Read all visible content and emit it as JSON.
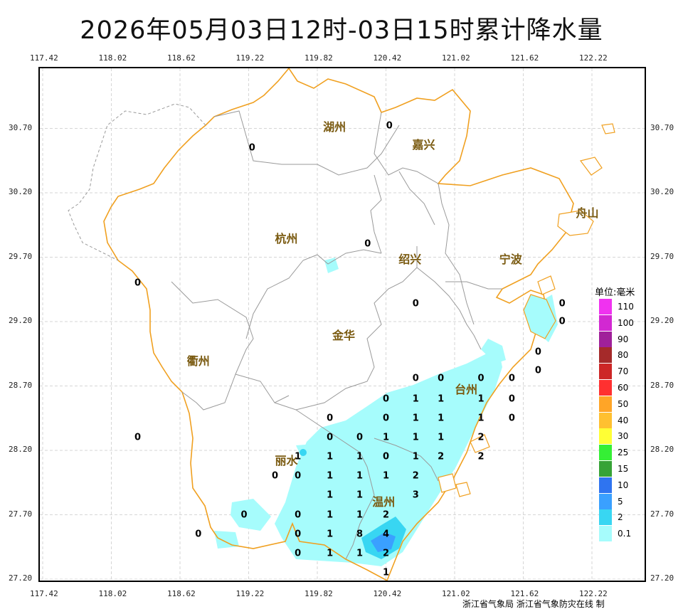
{
  "title": "2026年05月03日12时-03日15时累计降水量",
  "axes": {
    "lon": [
      "117.42",
      "118.02",
      "118.62",
      "119.22",
      "119.82",
      "120.42",
      "121.02",
      "121.62",
      "122.22"
    ],
    "lat": [
      "30.70",
      "30.20",
      "29.70",
      "29.20",
      "28.70",
      "28.20",
      "27.70",
      "27.20"
    ]
  },
  "cities": [
    {
      "name": "湖州",
      "lon": 119.97,
      "lat": 30.72
    },
    {
      "name": "嘉兴",
      "lon": 120.75,
      "lat": 30.58
    },
    {
      "name": "杭州",
      "lon": 119.55,
      "lat": 29.85
    },
    {
      "name": "绍兴",
      "lon": 120.63,
      "lat": 29.69
    },
    {
      "name": "宁波",
      "lon": 121.51,
      "lat": 29.69
    },
    {
      "name": "舟山",
      "lon": 122.18,
      "lat": 30.05
    },
    {
      "name": "金华",
      "lon": 120.05,
      "lat": 29.1
    },
    {
      "name": "衢州",
      "lon": 118.78,
      "lat": 28.9
    },
    {
      "name": "台州",
      "lon": 121.12,
      "lat": 28.68
    },
    {
      "name": "丽水",
      "lon": 119.55,
      "lat": 28.13
    },
    {
      "name": "温州",
      "lon": 120.4,
      "lat": 27.81
    }
  ],
  "station_values": [
    {
      "v": "0",
      "lon": 120.45,
      "lat": 30.72
    },
    {
      "v": "0",
      "lon": 119.25,
      "lat": 30.55
    },
    {
      "v": "0",
      "lon": 120.26,
      "lat": 29.8
    },
    {
      "v": "0",
      "lon": 118.25,
      "lat": 29.5
    },
    {
      "v": "0",
      "lon": 120.68,
      "lat": 29.34
    },
    {
      "v": "0",
      "lon": 121.96,
      "lat": 29.34
    },
    {
      "v": "0",
      "lon": 121.96,
      "lat": 29.2
    },
    {
      "v": "0",
      "lon": 121.75,
      "lat": 28.96
    },
    {
      "v": "0",
      "lon": 121.75,
      "lat": 28.82
    },
    {
      "v": "0",
      "lon": 120.68,
      "lat": 28.76
    },
    {
      "v": "0",
      "lon": 120.9,
      "lat": 28.76
    },
    {
      "v": "0",
      "lon": 121.25,
      "lat": 28.76
    },
    {
      "v": "0",
      "lon": 121.52,
      "lat": 28.76
    },
    {
      "v": "0",
      "lon": 120.42,
      "lat": 28.6
    },
    {
      "v": "1",
      "lon": 120.68,
      "lat": 28.6
    },
    {
      "v": "1",
      "lon": 120.9,
      "lat": 28.6
    },
    {
      "v": "1",
      "lon": 121.25,
      "lat": 28.6
    },
    {
      "v": "0",
      "lon": 121.52,
      "lat": 28.6
    },
    {
      "v": "0",
      "lon": 119.93,
      "lat": 28.45
    },
    {
      "v": "0",
      "lon": 120.42,
      "lat": 28.45
    },
    {
      "v": "1",
      "lon": 120.68,
      "lat": 28.45
    },
    {
      "v": "1",
      "lon": 120.9,
      "lat": 28.45
    },
    {
      "v": "1",
      "lon": 121.25,
      "lat": 28.45
    },
    {
      "v": "0",
      "lon": 121.52,
      "lat": 28.45
    },
    {
      "v": "0",
      "lon": 118.25,
      "lat": 28.3
    },
    {
      "v": "0",
      "lon": 119.93,
      "lat": 28.3
    },
    {
      "v": "0",
      "lon": 120.19,
      "lat": 28.3
    },
    {
      "v": "1",
      "lon": 120.42,
      "lat": 28.3
    },
    {
      "v": "1",
      "lon": 120.68,
      "lat": 28.3
    },
    {
      "v": "1",
      "lon": 120.9,
      "lat": 28.3
    },
    {
      "v": "2",
      "lon": 121.25,
      "lat": 28.3
    },
    {
      "v": "1",
      "lon": 119.65,
      "lat": 28.15
    },
    {
      "v": "1",
      "lon": 119.93,
      "lat": 28.15
    },
    {
      "v": "1",
      "lon": 120.19,
      "lat": 28.15
    },
    {
      "v": "0",
      "lon": 120.42,
      "lat": 28.15
    },
    {
      "v": "1",
      "lon": 120.68,
      "lat": 28.15
    },
    {
      "v": "2",
      "lon": 120.9,
      "lat": 28.15
    },
    {
      "v": "2",
      "lon": 121.25,
      "lat": 28.15
    },
    {
      "v": "0",
      "lon": 119.45,
      "lat": 28.0
    },
    {
      "v": "0",
      "lon": 119.65,
      "lat": 28.0
    },
    {
      "v": "1",
      "lon": 119.93,
      "lat": 28.0
    },
    {
      "v": "1",
      "lon": 120.19,
      "lat": 28.0
    },
    {
      "v": "1",
      "lon": 120.42,
      "lat": 28.0
    },
    {
      "v": "2",
      "lon": 120.68,
      "lat": 28.0
    },
    {
      "v": "1",
      "lon": 119.93,
      "lat": 27.85
    },
    {
      "v": "1",
      "lon": 120.19,
      "lat": 27.85
    },
    {
      "v": "3",
      "lon": 120.68,
      "lat": 27.85
    },
    {
      "v": "0",
      "lon": 119.18,
      "lat": 27.7
    },
    {
      "v": "0",
      "lon": 119.65,
      "lat": 27.7
    },
    {
      "v": "1",
      "lon": 119.93,
      "lat": 27.7
    },
    {
      "v": "1",
      "lon": 120.19,
      "lat": 27.7
    },
    {
      "v": "2",
      "lon": 120.42,
      "lat": 27.7
    },
    {
      "v": "0",
      "lon": 118.78,
      "lat": 27.55
    },
    {
      "v": "0",
      "lon": 119.65,
      "lat": 27.55
    },
    {
      "v": "1",
      "lon": 119.93,
      "lat": 27.55
    },
    {
      "v": "8",
      "lon": 120.19,
      "lat": 27.55
    },
    {
      "v": "4",
      "lon": 120.42,
      "lat": 27.55
    },
    {
      "v": "0",
      "lon": 119.65,
      "lat": 27.4
    },
    {
      "v": "1",
      "lon": 119.93,
      "lat": 27.4
    },
    {
      "v": "1",
      "lon": 120.19,
      "lat": 27.4
    },
    {
      "v": "2",
      "lon": 120.42,
      "lat": 27.4
    },
    {
      "v": "1",
      "lon": 120.42,
      "lat": 27.25
    }
  ],
  "legend": {
    "title": "单位:毫米",
    "items": [
      {
        "label": "110",
        "color": "#f032f0"
      },
      {
        "label": "100",
        "color": "#d228d2"
      },
      {
        "label": "90",
        "color": "#a0209a"
      },
      {
        "label": "80",
        "color": "#a52a2a"
      },
      {
        "label": "70",
        "color": "#cd2626"
      },
      {
        "label": "60",
        "color": "#ff3030"
      },
      {
        "label": "50",
        "color": "#ffa527"
      },
      {
        "label": "40",
        "color": "#ffc030"
      },
      {
        "label": "30",
        "color": "#ffff35"
      },
      {
        "label": "25",
        "color": "#35ef35"
      },
      {
        "label": "15",
        "color": "#36a336"
      },
      {
        "label": "10",
        "color": "#2f74f0"
      },
      {
        "label": "5",
        "color": "#3aa0ff"
      },
      {
        "label": "2",
        "color": "#38d6f2"
      },
      {
        "label": "0.1",
        "color": "#a6fcfc"
      }
    ]
  },
  "colors": {
    "coast": "#f0a020",
    "boundary": "#9a9a9a",
    "grid": "#d6d6d6",
    "rain_light": "#a6fcfc",
    "rain_2": "#38d6f2",
    "rain_5": "#3aa0ff",
    "city_label": "#7a5a10"
  },
  "credit": "浙江省气象局 浙江省气象防灾在线 制"
}
